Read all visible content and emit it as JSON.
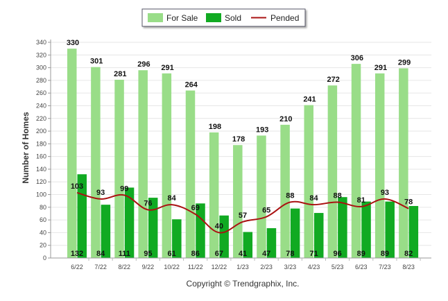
{
  "chart_data": {
    "type": "bar",
    "categories": [
      "6/22",
      "7/22",
      "8/22",
      "9/22",
      "10/22",
      "11/22",
      "12/22",
      "1/23",
      "2/23",
      "3/23",
      "4/23",
      "5/23",
      "6/23",
      "7/23",
      "8/23"
    ],
    "series": [
      {
        "name": "For Sale",
        "kind": "bar",
        "color": "#99dd88",
        "values": [
          330,
          301,
          281,
          296,
          291,
          264,
          198,
          178,
          193,
          210,
          241,
          272,
          306,
          291,
          299
        ]
      },
      {
        "name": "Sold",
        "kind": "bar",
        "color": "#11aa22",
        "values": [
          132,
          84,
          111,
          95,
          61,
          86,
          67,
          41,
          47,
          78,
          71,
          96,
          89,
          89,
          82
        ]
      },
      {
        "name": "Pended",
        "kind": "line",
        "color": "#aa1111",
        "values": [
          103,
          93,
          99,
          76,
          84,
          69,
          40,
          57,
          65,
          88,
          84,
          88,
          81,
          93,
          78
        ]
      }
    ],
    "ylabel": "Number of Homes",
    "ylim": [
      0,
      340
    ],
    "yticks": [
      0,
      20,
      40,
      60,
      80,
      100,
      120,
      140,
      160,
      180,
      200,
      220,
      240,
      260,
      280,
      300,
      320,
      340
    ],
    "grid": true,
    "legend_position": "top-center"
  },
  "footer": {
    "copyright": "Copyright © Trendgraphix, Inc."
  }
}
